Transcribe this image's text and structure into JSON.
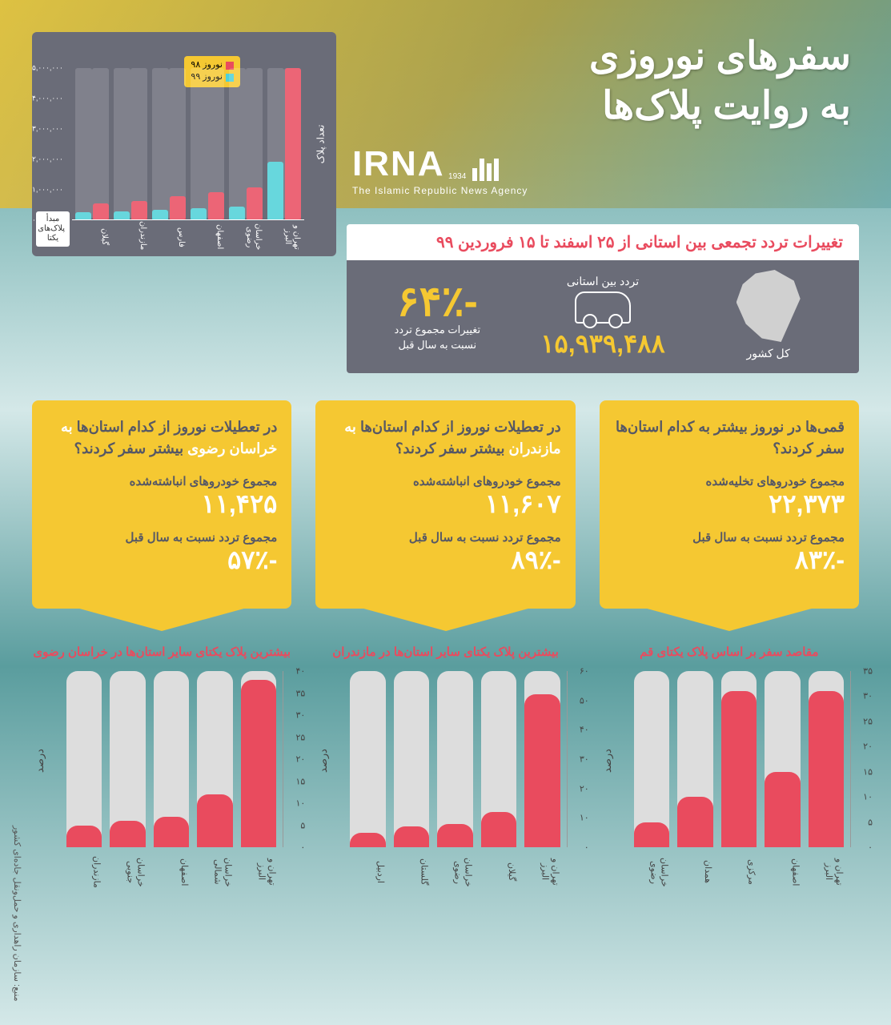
{
  "header": {
    "title_line1": "سفرهای نوروزی",
    "title_line2": "به روایت پلاک‌ها",
    "logo_brand": "IRNA",
    "logo_year": "1934",
    "logo_sub": "The Islamic Republic News Agency"
  },
  "top_chart": {
    "type": "bar",
    "ylabel": "تعداد پلاک",
    "origin_badge": "مبدأ پلاک‌های یکتا",
    "legend": [
      {
        "label": "نوروز ۹۸",
        "color": "#e94b5e"
      },
      {
        "label": "نوروز ۹۹",
        "color": "#4dd0d8"
      }
    ],
    "categories": [
      "تهران و البرز",
      "خراسان رضوی",
      "اصفهان",
      "فارس",
      "مازندران",
      "گیلان"
    ],
    "values_98": [
      5000000,
      1050000,
      900000,
      780000,
      620000,
      520000
    ],
    "values_99": [
      1900000,
      420000,
      370000,
      320000,
      260000,
      230000
    ],
    "ylim": [
      0,
      5000000
    ],
    "ytick_step": 1000000,
    "ytick_labels": [
      "۰",
      "۱,۰۰۰,۰۰۰",
      "۲,۰۰۰,۰۰۰",
      "۳,۰۰۰,۰۰۰",
      "۴,۰۰۰,۰۰۰",
      "۵,۰۰۰,۰۰۰"
    ],
    "color_98": "#e94b5e",
    "color_99": "#4dd0d8"
  },
  "stats": {
    "title": "تغییرات تردد تجمعی بین استانی از ۲۵ اسفند تا ۱۵ فروردین ۹۹",
    "country_label": "کل کشور",
    "inter_label": "تردد بین استانی",
    "inter_value": "۱۵,۹۳۹,۴۸۸",
    "change_pct": "-۶۴٪",
    "change_sub1": "تغییرات مجموع تردد",
    "change_sub2": "نسبت به سال قبل"
  },
  "cards": [
    {
      "title_pre": "قمی‌ها در نوروز بیشتر به کدام",
      "title_hl": "",
      "title_post": "استان‌ها سفر کردند؟",
      "stat1_label": "مجموع خودروهای تخلیه‌شده",
      "stat1_val": "۲۲,۳۷۳",
      "stat2_label": "مجموع تردد نسبت به سال قبل",
      "stat2_val": "-۸۳٪",
      "chart_title": "مقاصد سفر بر اساس پلاک یکتای قم",
      "chart": {
        "type": "bar",
        "ylabel": "درصد",
        "categories": [
          "تهران و البرز",
          "اصفهان",
          "مرکزی",
          "همدان",
          "خراسان رضوی"
        ],
        "values": [
          31,
          15,
          31,
          10,
          5
        ],
        "ylim": [
          0,
          35
        ],
        "ytick_step": 5,
        "ytick_labels": [
          "۰",
          "۵",
          "۱۰",
          "۱۵",
          "۲۰",
          "۲۵",
          "۳۰",
          "۳۵"
        ],
        "bar_color": "#e94b5e"
      }
    },
    {
      "title_pre": "در تعطیلات نوروز از کدام استان‌ها",
      "title_hl": "به مازندران",
      "title_post": "بیشتر سفر کردند؟",
      "stat1_label": "مجموع خودروهای انباشته‌شده",
      "stat1_val": "۱۱,۶۰۷",
      "stat2_label": "مجموع تردد نسبت به سال قبل",
      "stat2_val": "-۸۹٪",
      "chart_title": "بیشترین پلاک یکتای سایر استان‌ها در مازندران",
      "chart": {
        "type": "bar",
        "ylabel": "درصد",
        "categories": [
          "تهران و البرز",
          "گیلان",
          "خراسان رضوی",
          "گلستان",
          "اردبیل"
        ],
        "values": [
          52,
          12,
          8,
          7,
          5
        ],
        "ylim": [
          0,
          60
        ],
        "ytick_step": 10,
        "ytick_labels": [
          "۰",
          "۱۰",
          "۲۰",
          "۳۰",
          "۴۰",
          "۵۰",
          "۶۰"
        ],
        "bar_color": "#e94b5e"
      }
    },
    {
      "title_pre": "در تعطیلات نوروز از کدام استان‌ها",
      "title_hl": "به خراسان رضوی",
      "title_post": "بیشتر سفر کردند؟",
      "stat1_label": "مجموع خودروهای انباشته‌شده",
      "stat1_val": "۱۱,۴۲۵",
      "stat2_label": "مجموع تردد نسبت به سال قبل",
      "stat2_val": "-۵۷٪",
      "chart_title": "بیشترین پلاک یکتای سایر استان‌ها در خراسان رضوی",
      "chart": {
        "type": "bar",
        "ylabel": "درصد",
        "categories": [
          "تهران و البرز",
          "خراسان شمالی",
          "اصفهان",
          "خراسان جنوبی",
          "مازندران"
        ],
        "values": [
          38,
          12,
          7,
          6,
          5
        ],
        "ylim": [
          0,
          40
        ],
        "ytick_step": 5,
        "ytick_labels": [
          "۰",
          "۵",
          "۱۰",
          "۱۵",
          "۲۰",
          "۲۵",
          "۳۰",
          "۳۵",
          "۴۰"
        ],
        "bar_color": "#e94b5e"
      }
    }
  ],
  "source": "منبع: سازمان راهداری و حمل‌ونقل جاده‌ای کشور"
}
